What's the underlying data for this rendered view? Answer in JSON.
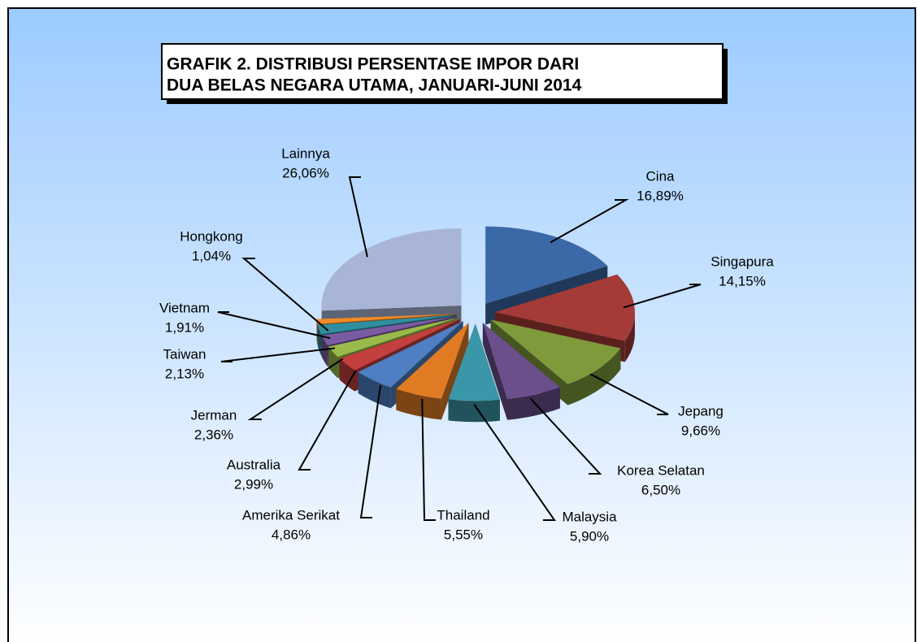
{
  "chart_data": {
    "type": "pie",
    "title": [
      "GRAFIK 2. DISTRIBUSI  PERSENTASE IMPOR DARI",
      "DUA BELAS NEGARA UTAMA, JANUARI-JUNI 2014"
    ],
    "categories": [
      "Cina",
      "Singapura",
      "Jepang",
      "Korea Selatan",
      "Malaysia",
      "Thailand",
      "Amerika Serikat",
      "Australia",
      "Jerman",
      "Taiwan",
      "Vietnam",
      "Hongkong",
      "Lainnya"
    ],
    "values": [
      16.89,
      14.15,
      9.66,
      6.5,
      5.9,
      5.55,
      4.86,
      2.99,
      2.36,
      2.13,
      1.91,
      1.04,
      26.06
    ],
    "value_labels": [
      "16,89%",
      "14,15%",
      "9,66%",
      "6,50%",
      "5,90%",
      "5,55%",
      "4,86%",
      "2,99%",
      "2,36%",
      "2,13%",
      "1,91%",
      "1,04%",
      "26,06%"
    ],
    "colors": [
      "#3b68a6",
      "#a43b37",
      "#7e9a3b",
      "#6b4f8c",
      "#3a96a8",
      "#e07b24",
      "#4f7fc2",
      "#c2403d",
      "#99b94b",
      "#7b5ba2",
      "#2f8fa1",
      "#f08b29",
      "#a9b5d6"
    ]
  }
}
